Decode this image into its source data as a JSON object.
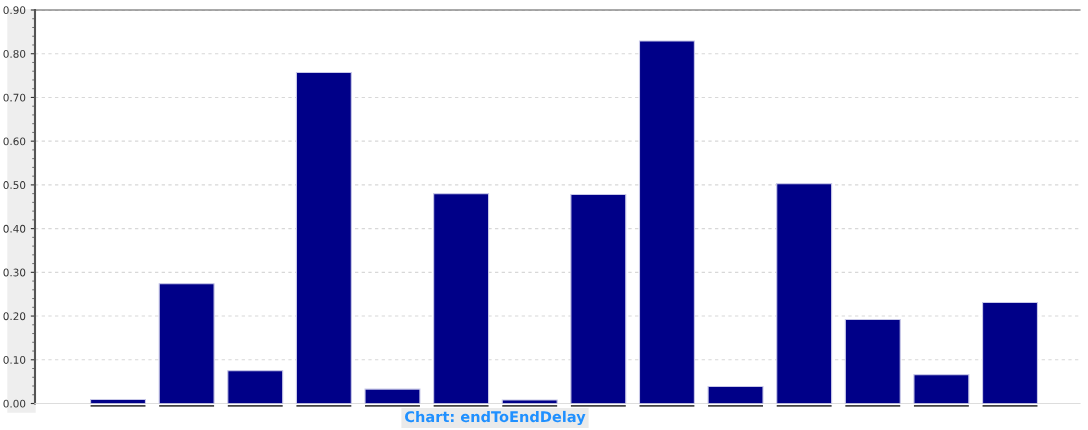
{
  "chart_data": {
    "type": "bar",
    "title": "Chart: endToEndDelay",
    "categories": [
      null,
      null,
      null,
      null,
      null,
      null,
      null,
      null,
      null,
      null,
      null,
      null,
      null,
      null
    ],
    "values": [
      0.009,
      0.274,
      0.075,
      0.757,
      0.033,
      0.48,
      0.008,
      0.478,
      0.829,
      0.039,
      0.503,
      0.192,
      0.066,
      0.231
    ],
    "color": "#000088",
    "ylim": [
      0,
      0.9
    ],
    "yticks": [
      {
        "value": 0,
        "label": "0.00"
      },
      {
        "value": 0.1,
        "label": "0.10"
      },
      {
        "value": 0.2,
        "label": "0.20"
      },
      {
        "value": 0.3,
        "label": "0.30"
      },
      {
        "value": 0.4,
        "label": "0.40"
      },
      {
        "value": 0.5,
        "label": "0.50"
      },
      {
        "value": 0.6,
        "label": "0.60"
      },
      {
        "value": 0.7,
        "label": "0.70"
      },
      {
        "value": 0.8,
        "label": "0.80"
      },
      {
        "value": 0.9,
        "label": "0.90"
      }
    ],
    "grid": "y",
    "tick_labels": "y"
  }
}
